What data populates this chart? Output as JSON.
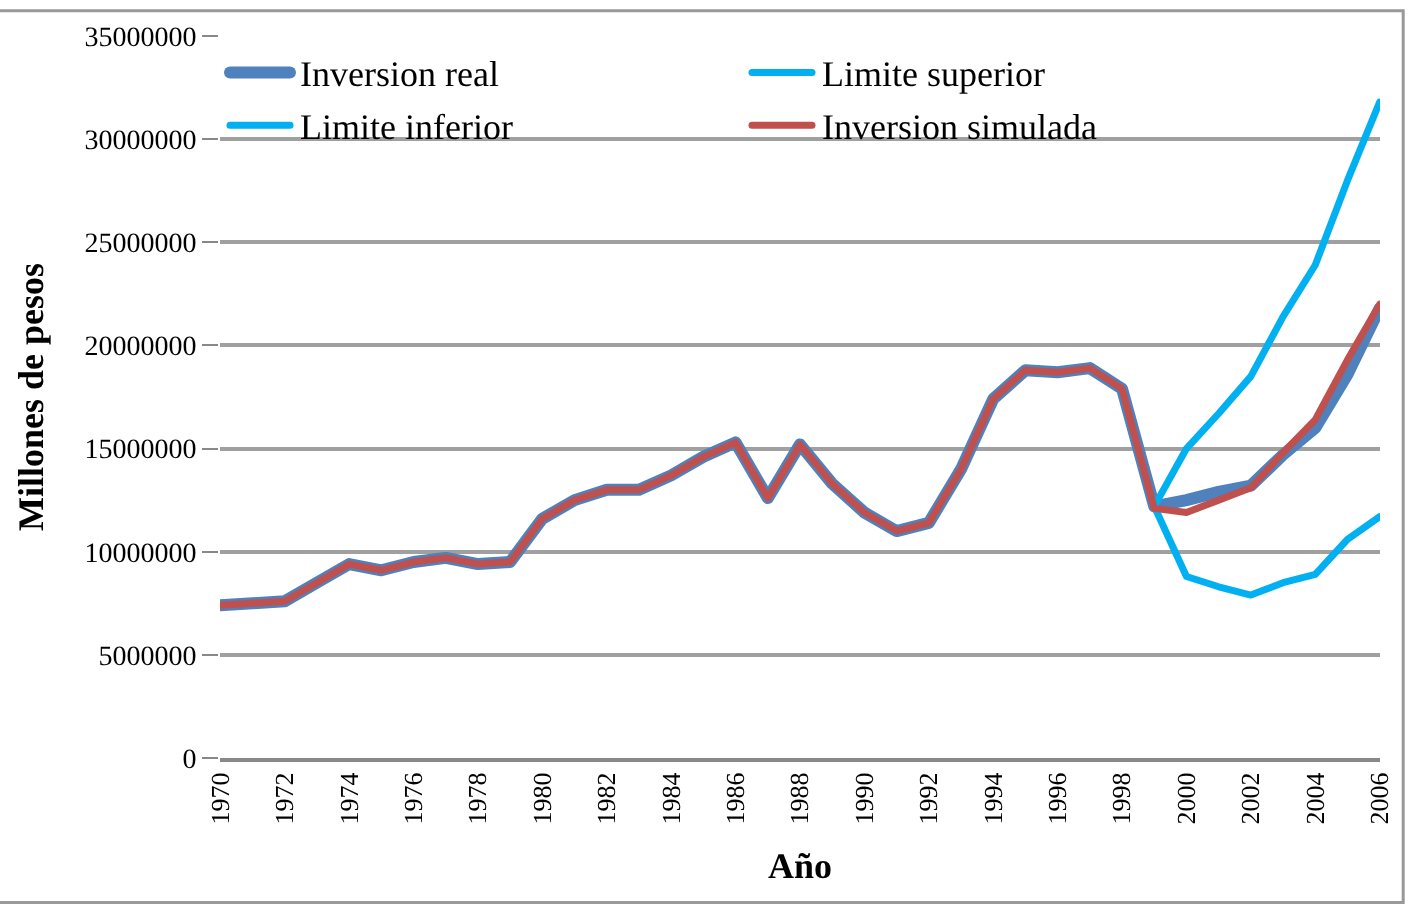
{
  "chart_data": {
    "type": "line",
    "xlabel": "Año",
    "ylabel": "Millones de pesos",
    "categories": [
      "1970",
      null,
      "1972",
      null,
      "1974",
      null,
      "1976",
      null,
      "1978",
      null,
      "1980",
      null,
      "1982",
      null,
      "1984",
      null,
      "1986",
      null,
      "1988",
      null,
      "1990",
      null,
      "1992",
      null,
      "1994",
      null,
      "1996",
      null,
      "1998",
      null,
      "2000",
      null,
      "2002",
      null,
      "2004",
      null,
      "2006"
    ],
    "series": [
      {
        "name": "Inversion real",
        "color": "#4f81bd",
        "values": [
          7400000,
          7500000,
          7600000,
          8500000,
          9400000,
          9100000,
          9500000,
          9700000,
          9400000,
          9500000,
          11600000,
          12500000,
          13000000,
          13000000,
          13700000,
          14600000,
          15300000,
          12600000,
          15200000,
          13300000,
          11900000,
          11000000,
          11400000,
          14000000,
          17400000,
          18800000,
          18700000,
          18900000,
          17900000,
          12200000,
          12500000,
          12900000,
          13200000,
          14700000,
          16000000,
          18600000,
          21800000
        ]
      },
      {
        "name": "Limite superior",
        "color": "#00b0f0",
        "values": [
          null,
          null,
          null,
          null,
          null,
          null,
          null,
          null,
          null,
          null,
          null,
          null,
          null,
          null,
          null,
          null,
          null,
          null,
          null,
          null,
          null,
          null,
          null,
          null,
          null,
          null,
          null,
          null,
          null,
          12200000,
          15000000,
          16700000,
          18500000,
          21400000,
          23900000,
          28000000,
          31800000
        ]
      },
      {
        "name": "Limite inferior",
        "color": "#00b0f0",
        "values": [
          null,
          null,
          null,
          null,
          null,
          null,
          null,
          null,
          null,
          null,
          null,
          null,
          null,
          null,
          null,
          null,
          null,
          null,
          null,
          null,
          null,
          null,
          null,
          null,
          null,
          null,
          null,
          null,
          null,
          12200000,
          8800000,
          8300000,
          7900000,
          8500000,
          8900000,
          10600000,
          11700000
        ]
      },
      {
        "name": "Inversion simulada",
        "color": "#c0504d",
        "values": [
          7400000,
          7500000,
          7600000,
          8500000,
          9400000,
          9100000,
          9500000,
          9700000,
          9400000,
          9500000,
          11600000,
          12500000,
          13000000,
          13000000,
          13700000,
          14600000,
          15300000,
          12600000,
          15200000,
          13300000,
          11900000,
          11000000,
          11400000,
          14000000,
          17400000,
          18800000,
          18700000,
          18900000,
          17900000,
          12100000,
          11900000,
          12500000,
          13100000,
          14800000,
          16400000,
          19300000,
          22000000
        ]
      }
    ],
    "ylim": [
      0,
      35000000
    ],
    "yticks": [
      0,
      5000000,
      10000000,
      15000000,
      20000000,
      25000000,
      30000000,
      35000000
    ],
    "grid": "y",
    "legend": "top left",
    "marker": "none",
    "line_style": "solid"
  }
}
